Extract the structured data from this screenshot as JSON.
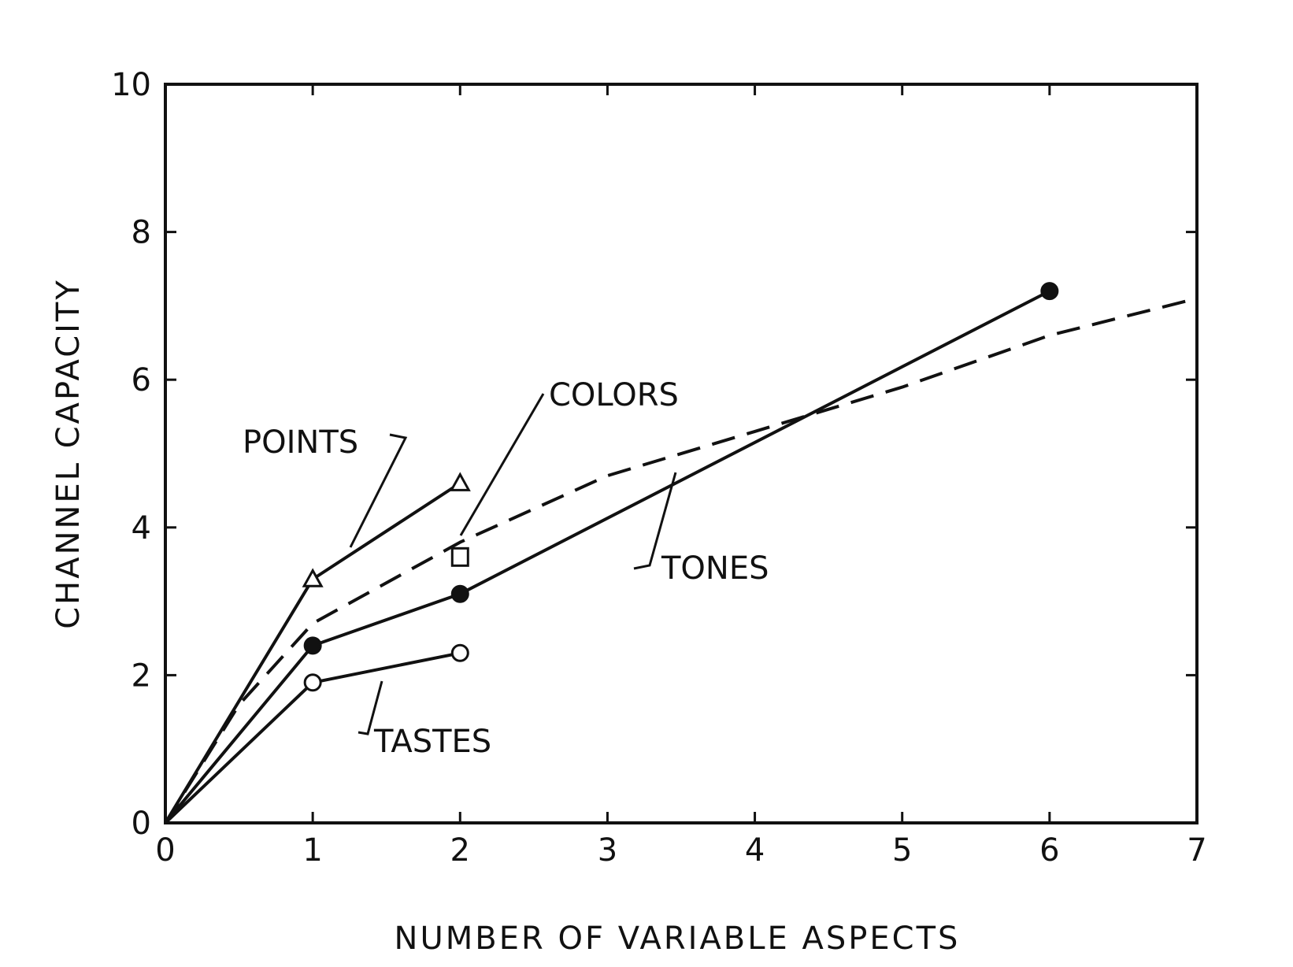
{
  "chart_data": {
    "type": "line",
    "title": "",
    "xlabel": "NUMBER OF VARIABLE ASPECTS",
    "ylabel": "CHANNEL CAPACITY",
    "xlim": [
      0,
      7
    ],
    "ylim": [
      0,
      10
    ],
    "x_ticks": [
      "0",
      "1",
      "2",
      "3",
      "4",
      "5",
      "6",
      "7"
    ],
    "y_ticks": [
      "0",
      "2",
      "4",
      "6",
      "8",
      "10"
    ],
    "grid": false,
    "legend": "none",
    "line_color": "#111111",
    "series": [
      {
        "name": "POINTS",
        "marker": "triangle-open",
        "style": "solid",
        "x": [
          0,
          1,
          2
        ],
        "y": [
          0,
          3.3,
          4.6
        ]
      },
      {
        "name": "COLORS",
        "marker": "square-open",
        "style": "marker-only",
        "x": [
          2
        ],
        "y": [
          3.6
        ]
      },
      {
        "name": "TONES",
        "marker": "circle-filled",
        "style": "solid",
        "x": [
          0,
          1,
          2,
          6
        ],
        "y": [
          0,
          2.4,
          3.1,
          7.2
        ]
      },
      {
        "name": "TASTES",
        "marker": "circle-open",
        "style": "solid",
        "x": [
          0,
          1,
          2
        ],
        "y": [
          0,
          1.9,
          2.3
        ]
      },
      {
        "name": "",
        "marker": "none",
        "style": "dashed",
        "x": [
          0,
          0.5,
          1,
          2,
          3,
          4,
          5,
          6,
          7
        ],
        "y": [
          0,
          1.6,
          2.7,
          3.8,
          4.7,
          5.3,
          5.9,
          6.6,
          7.1
        ]
      }
    ],
    "annotations": [
      "POINTS",
      "COLORS",
      "TONES",
      "TASTES"
    ]
  }
}
